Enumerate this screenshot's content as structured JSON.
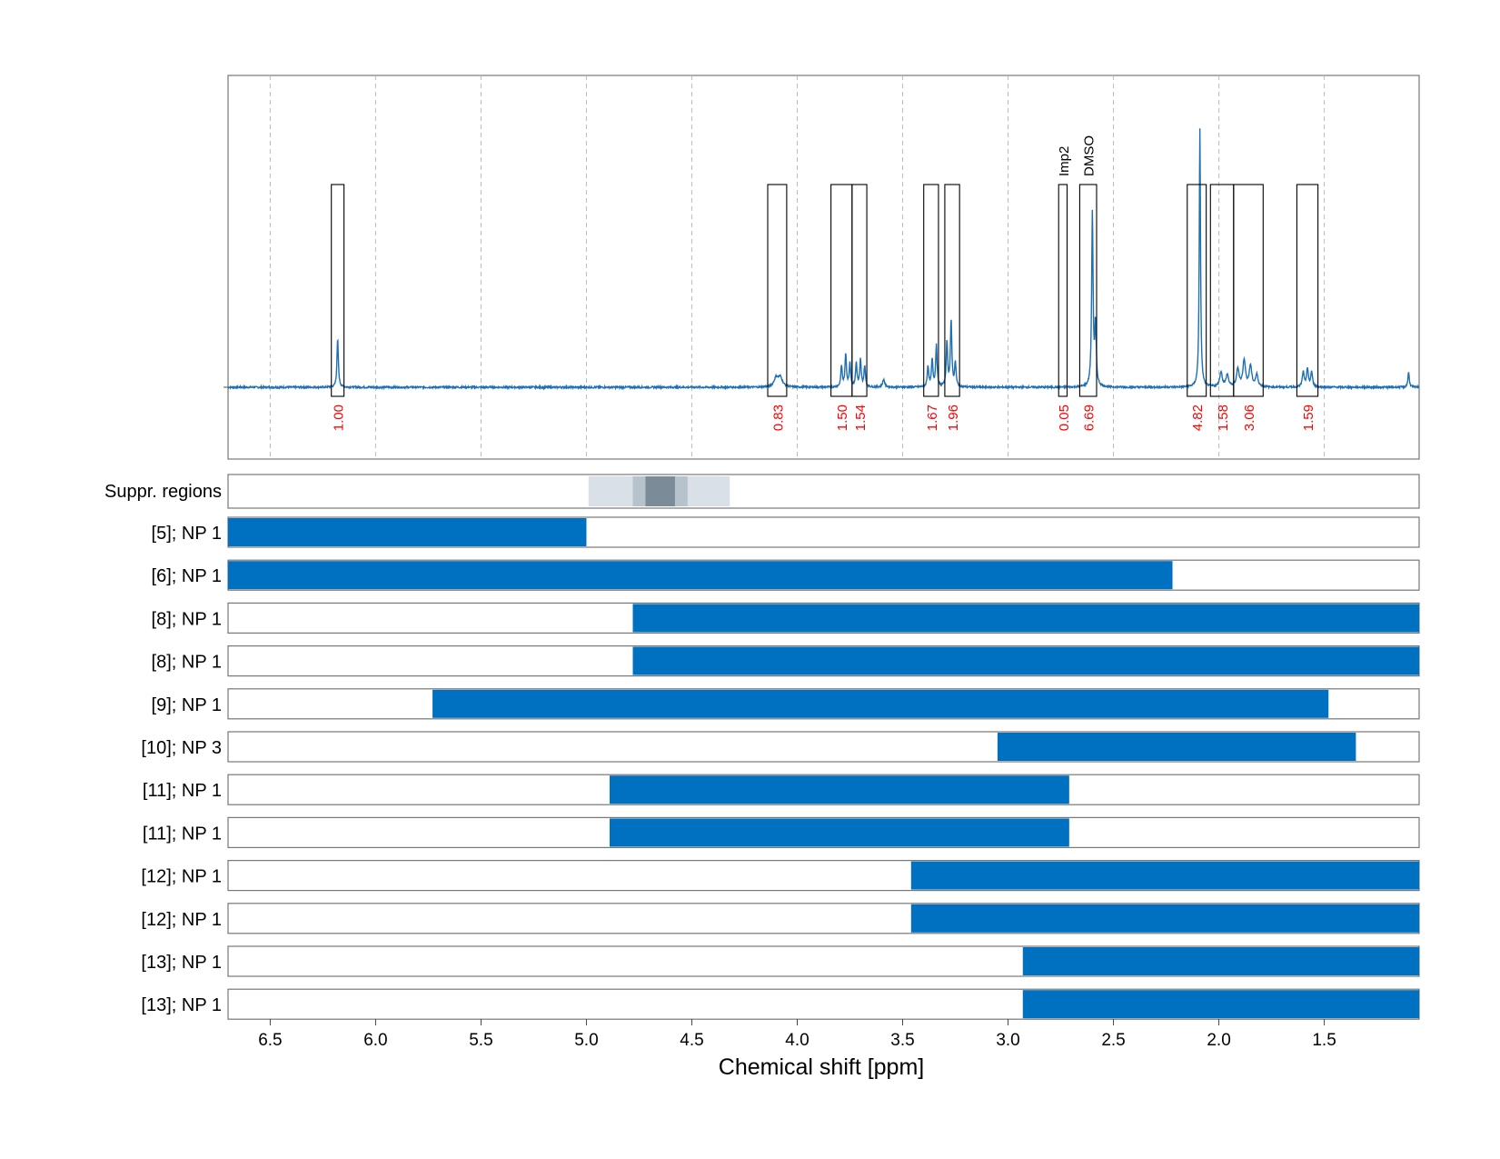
{
  "chart_data": {
    "type": "nmr-spectrum-with-ranges",
    "xlabel": "Chemical shift [ppm]",
    "x_reversed": true,
    "xlim": [
      6.7,
      1.05
    ],
    "x_ticks": [
      6.5,
      6.0,
      5.5,
      5.0,
      4.5,
      4.0,
      3.5,
      3.0,
      2.5,
      2.0,
      1.5
    ],
    "x_tick_labels": [
      "6.5",
      "6.0",
      "5.5",
      "5.0",
      "4.5",
      "4.0",
      "3.5",
      "3.0",
      "2.5",
      "2.0",
      "1.5"
    ],
    "grid": "vertical dashed",
    "series_color": "#1f6fb5",
    "bar_color": "#0070c0",
    "integral_label_color": "#ff0000",
    "peaks": [
      {
        "ppm": 6.18,
        "height": 0.16,
        "width": 0.004
      },
      {
        "ppm": 4.1,
        "height": 0.03,
        "width": 0.012
      },
      {
        "ppm": 4.08,
        "height": 0.03,
        "width": 0.012
      },
      {
        "ppm": 3.79,
        "height": 0.07,
        "width": 0.004
      },
      {
        "ppm": 3.77,
        "height": 0.11,
        "width": 0.004
      },
      {
        "ppm": 3.75,
        "height": 0.08,
        "width": 0.004
      },
      {
        "ppm": 3.72,
        "height": 0.08,
        "width": 0.004
      },
      {
        "ppm": 3.7,
        "height": 0.09,
        "width": 0.004
      },
      {
        "ppm": 3.68,
        "height": 0.07,
        "width": 0.004
      },
      {
        "ppm": 3.59,
        "height": 0.025,
        "width": 0.006
      },
      {
        "ppm": 3.38,
        "height": 0.07,
        "width": 0.004
      },
      {
        "ppm": 3.36,
        "height": 0.09,
        "width": 0.004
      },
      {
        "ppm": 3.34,
        "height": 0.14,
        "width": 0.004
      },
      {
        "ppm": 3.29,
        "height": 0.15,
        "width": 0.004
      },
      {
        "ppm": 3.27,
        "height": 0.22,
        "width": 0.004
      },
      {
        "ppm": 3.25,
        "height": 0.08,
        "width": 0.004
      },
      {
        "ppm": 2.6,
        "height": 0.58,
        "width": 0.004
      },
      {
        "ppm": 2.585,
        "height": 0.2,
        "width": 0.004
      },
      {
        "ppm": 2.09,
        "height": 0.86,
        "width": 0.0035
      },
      {
        "ppm": 1.99,
        "height": 0.05,
        "width": 0.007
      },
      {
        "ppm": 1.96,
        "height": 0.04,
        "width": 0.007
      },
      {
        "ppm": 1.91,
        "height": 0.06,
        "width": 0.007
      },
      {
        "ppm": 1.88,
        "height": 0.09,
        "width": 0.007
      },
      {
        "ppm": 1.85,
        "height": 0.07,
        "width": 0.007
      },
      {
        "ppm": 1.82,
        "height": 0.04,
        "width": 0.007
      },
      {
        "ppm": 1.6,
        "height": 0.05,
        "width": 0.005
      },
      {
        "ppm": 1.58,
        "height": 0.06,
        "width": 0.005
      },
      {
        "ppm": 1.56,
        "height": 0.05,
        "width": 0.005
      },
      {
        "ppm": 1.1,
        "height": 0.05,
        "width": 0.004
      }
    ],
    "integration_regions": [
      {
        "from": 6.21,
        "to": 6.15,
        "label": "1.00"
      },
      {
        "from": 4.14,
        "to": 4.05,
        "label": "0.83"
      },
      {
        "from": 3.84,
        "to": 3.74,
        "label": "1.50"
      },
      {
        "from": 3.74,
        "to": 3.67,
        "label": "1.54"
      },
      {
        "from": 3.4,
        "to": 3.33,
        "label": "1.67"
      },
      {
        "from": 3.3,
        "to": 3.23,
        "label": "1.96"
      },
      {
        "from": 2.76,
        "to": 2.72,
        "label": "0.05",
        "annotation": "Imp2"
      },
      {
        "from": 2.66,
        "to": 2.58,
        "label": "6.69",
        "annotation": "DMSO"
      },
      {
        "from": 2.15,
        "to": 2.06,
        "label": "4.82"
      },
      {
        "from": 2.04,
        "to": 1.93,
        "label": "1.58"
      },
      {
        "from": 1.93,
        "to": 1.79,
        "label": "3.06"
      },
      {
        "from": 1.63,
        "to": 1.53,
        "label": "1.59"
      }
    ],
    "suppressed_regions": {
      "label": "Suppr. regions",
      "bands": [
        {
          "from": 4.99,
          "to": 4.32,
          "level": 1
        },
        {
          "from": 4.78,
          "to": 4.52,
          "level": 2
        },
        {
          "from": 4.72,
          "to": 4.58,
          "level": 3
        }
      ]
    },
    "ranges": [
      {
        "label": "[5]; NP 1",
        "from": 6.7,
        "to": 5.0
      },
      {
        "label": "[6]; NP 1",
        "from": 6.7,
        "to": 2.22
      },
      {
        "label": "[8]; NP 1",
        "from": 4.78,
        "to": 1.05
      },
      {
        "label": "[8]; NP 1",
        "from": 4.78,
        "to": 1.05
      },
      {
        "label": "[9]; NP 1",
        "from": 5.73,
        "to": 1.48
      },
      {
        "label": "[10]; NP 3",
        "from": 3.05,
        "to": 1.35
      },
      {
        "label": "[11]; NP 1",
        "from": 4.89,
        "to": 2.71
      },
      {
        "label": "[11]; NP 1",
        "from": 4.89,
        "to": 2.71
      },
      {
        "label": "[12]; NP 1",
        "from": 3.46,
        "to": 1.05
      },
      {
        "label": "[12]; NP 1",
        "from": 3.46,
        "to": 1.05
      },
      {
        "label": "[13]; NP 1",
        "from": 2.93,
        "to": 1.05
      },
      {
        "label": "[13]; NP 1",
        "from": 2.93,
        "to": 1.05
      }
    ]
  }
}
